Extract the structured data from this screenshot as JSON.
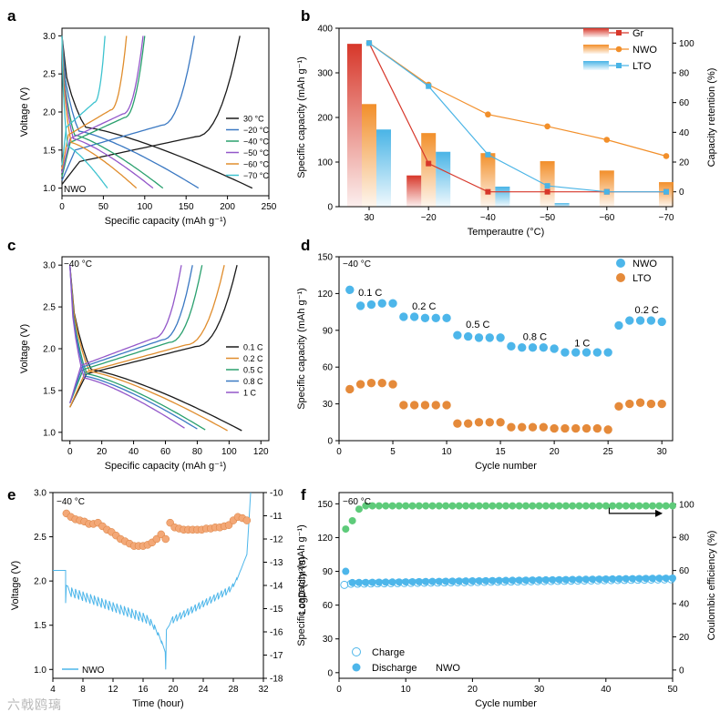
{
  "watermark": "六戟鸥璃",
  "colors": {
    "gr": "#d7372a",
    "nwo": "#f28f2a",
    "lto": "#49b4e6",
    "c30": "#1a1a1a",
    "c20": "#3a78c2",
    "c40": "#2aa06e",
    "c50": "#9357c9",
    "c60": "#e08d2d",
    "c70": "#3ec3cf",
    "dot_blue": "#4db6ea",
    "dot_orange": "#e58a3a",
    "dot_green": "#5ecb7a",
    "dot_peach": "#f3a877"
  },
  "chart_data": [
    {
      "panel": "a",
      "type": "line",
      "xlabel": "Specific capacity (mAh g⁻¹)",
      "ylabel": "Voltage (V)",
      "xlim": [
        0,
        250
      ],
      "ylim": [
        0.9,
        3.1
      ],
      "xticks": [
        0,
        50,
        100,
        150,
        200,
        250
      ],
      "yticks": [
        1.0,
        1.5,
        2.0,
        2.5,
        3.0
      ],
      "annotation": "NWO",
      "legend": [
        "30 °C",
        "−20 °C",
        "−40 °C",
        "−50 °C",
        "−60 °C",
        "−70 °C"
      ],
      "series": [
        {
          "name": "30 °C",
          "charge_end": 215,
          "discharge_end": 230
        },
        {
          "name": "−20 °C",
          "charge_end": 160,
          "discharge_end": 165
        },
        {
          "name": "−40 °C",
          "charge_end": 100,
          "discharge_end": 122
        },
        {
          "name": "−50 °C",
          "charge_end": 98,
          "discharge_end": 110
        },
        {
          "name": "−60 °C",
          "charge_end": 78,
          "discharge_end": 90
        },
        {
          "name": "−70 °C",
          "charge_end": 52,
          "discharge_end": 55
        }
      ]
    },
    {
      "panel": "b",
      "type": "bar",
      "xlabel": "Temperautre (°C)",
      "ylabel": "Specific capacity (mAh g⁻¹)",
      "y2label": "Capacity retention (%)",
      "categories": [
        "30",
        "−20",
        "−40",
        "−50",
        "−60",
        "−70"
      ],
      "ylim": [
        0,
        400
      ],
      "yticks": [
        0,
        100,
        200,
        300,
        400
      ],
      "y2lim": [
        -10,
        110
      ],
      "y2ticks": [
        0,
        20,
        40,
        60,
        80,
        100
      ],
      "legend": [
        "Gr",
        "NWO",
        "LTO"
      ],
      "bars": [
        {
          "name": "Gr",
          "values": [
            365,
            70,
            0,
            0,
            0,
            0
          ]
        },
        {
          "name": "NWO",
          "values": [
            230,
            165,
            120,
            102,
            81,
            55
          ]
        },
        {
          "name": "LTO",
          "values": [
            173,
            123,
            45,
            8,
            0,
            0
          ]
        }
      ],
      "retention": [
        {
          "name": "Gr",
          "values": [
            100,
            19,
            0,
            0,
            0,
            0
          ]
        },
        {
          "name": "NWO",
          "values": [
            100,
            72,
            52,
            44,
            35,
            24
          ]
        },
        {
          "name": "LTO",
          "values": [
            100,
            71,
            25,
            4,
            0,
            0
          ]
        }
      ]
    },
    {
      "panel": "c",
      "type": "line",
      "xlabel": "Specific capacity (mAh g⁻¹)",
      "ylabel": "Voltage (V)",
      "xlim": [
        -5,
        125
      ],
      "ylim": [
        0.9,
        3.1
      ],
      "xticks": [
        0,
        20,
        40,
        60,
        80,
        100,
        120
      ],
      "yticks": [
        1.0,
        1.5,
        2.0,
        2.5,
        3.0
      ],
      "annotation": "−40 °C",
      "legend": [
        "0.1 C",
        "0.2 C",
        "0.5 C",
        "0.8 C",
        "1 C"
      ],
      "series": [
        {
          "name": "0.1 C",
          "charge_end": 105,
          "discharge_end": 108
        },
        {
          "name": "0.2 C",
          "charge_end": 97,
          "discharge_end": 99
        },
        {
          "name": "0.5 C",
          "charge_end": 83,
          "discharge_end": 85
        },
        {
          "name": "0.8 C",
          "charge_end": 77,
          "discharge_end": 80
        },
        {
          "name": "1 C",
          "charge_end": 70,
          "discharge_end": 72
        }
      ]
    },
    {
      "panel": "d",
      "type": "scatter",
      "xlabel": "Cycle number",
      "ylabel": "Specific capacity (mAh g⁻¹)",
      "xlim": [
        0,
        31
      ],
      "ylim": [
        0,
        150
      ],
      "xticks": [
        0,
        5,
        10,
        15,
        20,
        25,
        30
      ],
      "yticks": [
        0,
        30,
        60,
        90,
        120,
        150
      ],
      "annotation": "−40 °C",
      "legend": [
        "NWO",
        "LTO"
      ],
      "rate_labels": [
        "0.1 C",
        "0.2 C",
        "0.5 C",
        "0.8 C",
        "1 C",
        "0.2 C"
      ],
      "series": [
        {
          "name": "NWO",
          "x": [
            1,
            2,
            3,
            4,
            5,
            6,
            7,
            8,
            9,
            10,
            11,
            12,
            13,
            14,
            15,
            16,
            17,
            18,
            19,
            20,
            21,
            22,
            23,
            24,
            25,
            26,
            27,
            28,
            29,
            30
          ],
          "values": [
            123,
            110,
            111,
            112,
            112,
            101,
            101,
            100,
            100,
            100,
            86,
            85,
            84,
            84,
            84,
            77,
            76,
            76,
            76,
            75,
            72,
            72,
            72,
            72,
            72,
            94,
            98,
            98,
            98,
            97
          ]
        },
        {
          "name": "LTO",
          "x": [
            1,
            2,
            3,
            4,
            5,
            6,
            7,
            8,
            9,
            10,
            11,
            12,
            13,
            14,
            15,
            16,
            17,
            18,
            19,
            20,
            21,
            22,
            23,
            24,
            25,
            26,
            27,
            28,
            29,
            30
          ],
          "values": [
            42,
            46,
            47,
            47,
            46,
            29,
            29,
            29,
            29,
            29,
            14,
            14,
            15,
            15,
            15,
            11,
            11,
            11,
            11,
            10,
            10,
            10,
            10,
            10,
            9,
            28,
            30,
            31,
            30,
            30
          ]
        }
      ]
    },
    {
      "panel": "e",
      "type": "line",
      "xlabel": "Time (hour)",
      "ylabel": "Voltage (V)",
      "y2label": "LogD (cm²/s)",
      "xlim": [
        4,
        32
      ],
      "ylim": [
        0.9,
        3.0
      ],
      "xticks": [
        4,
        8,
        12,
        16,
        20,
        24,
        28,
        32
      ],
      "yticks": [
        1.0,
        1.5,
        2.0,
        2.5,
        3.0
      ],
      "y2lim": [
        -18,
        -10
      ],
      "y2ticks": [
        -10,
        -11,
        -12,
        -13,
        -14,
        -15,
        -16,
        -17,
        -18
      ],
      "annotation": "−40 °C",
      "legend": [
        "NWO"
      ],
      "logD_x": [
        5.8,
        6.4,
        7.0,
        7.6,
        8.2,
        8.8,
        9.4,
        10.0,
        10.6,
        11.2,
        11.8,
        12.4,
        13.0,
        13.6,
        14.2,
        14.8,
        15.4,
        16.0,
        16.6,
        17.2,
        17.8,
        18.4,
        19.0,
        19.6,
        20.2,
        20.8,
        21.4,
        22.0,
        22.6,
        23.2,
        23.8,
        24.4,
        25.0,
        25.6,
        26.2,
        26.8,
        27.4,
        28.0,
        28.6,
        29.2,
        29.8
      ],
      "logD": [
        -10.9,
        -11.05,
        -11.15,
        -11.2,
        -11.25,
        -11.35,
        -11.35,
        -11.3,
        -11.45,
        -11.6,
        -11.7,
        -11.85,
        -12.0,
        -12.1,
        -12.2,
        -12.3,
        -12.3,
        -12.3,
        -12.25,
        -12.15,
        -12.0,
        -11.8,
        -12.0,
        -11.3,
        -11.5,
        -11.55,
        -11.6,
        -11.6,
        -11.6,
        -11.6,
        -11.6,
        -11.55,
        -11.55,
        -11.5,
        -11.5,
        -11.45,
        -11.4,
        -11.2,
        -11.05,
        -11.1,
        -11.2
      ]
    },
    {
      "panel": "f",
      "type": "scatter",
      "xlabel": "Cycle number",
      "ylabel": "Specific capacity (mAh g⁻¹)",
      "y2label": "Coulombic efficiency (%)",
      "xlim": [
        0,
        50
      ],
      "ylim": [
        -5,
        160
      ],
      "xticks": [
        0,
        10,
        20,
        30,
        40,
        50
      ],
      "yticks": [
        0,
        30,
        60,
        90,
        120,
        150
      ],
      "y2lim": [
        -5,
        107
      ],
      "y2ticks": [
        0,
        20,
        40,
        60,
        80,
        100
      ],
      "annotation": "−60 °C",
      "annotation2": "NWO",
      "legend": [
        "Charge",
        "Discharge"
      ],
      "charge_first": 78,
      "discharge_first": 90,
      "capacity_start": 80,
      "capacity_end": 84,
      "ce_first": [
        85,
        90,
        97
      ],
      "ce_plateau": 99
    }
  ]
}
